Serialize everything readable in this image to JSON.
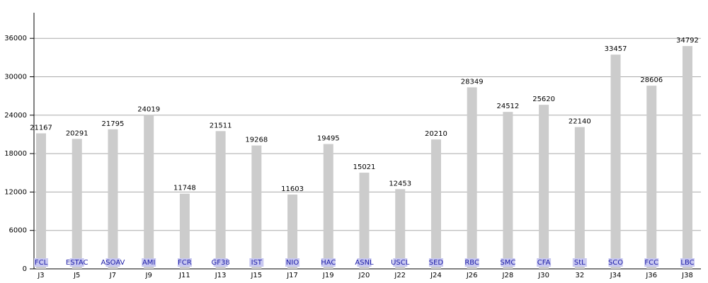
{
  "chart_data": {
    "type": "bar",
    "categories": [
      "J3",
      "J5",
      "J7",
      "J9",
      "J11",
      "J13",
      "J15",
      "J17",
      "J19",
      "J20",
      "J22",
      "J24",
      "J26",
      "J28",
      "J30",
      "32",
      "J34",
      "J36",
      "J38"
    ],
    "values": [
      21167,
      20291,
      21795,
      24019,
      11748,
      21511,
      19268,
      11603,
      19495,
      15021,
      12453,
      20210,
      28349,
      24512,
      25620,
      22140,
      33457,
      28606,
      34792
    ],
    "opponents": [
      "FCL",
      "ESTAC",
      "ASOAV",
      "AMI",
      "FCR",
      "GF38",
      "IST",
      "NIO",
      "HAC",
      "ASNL",
      "USCL",
      "SED",
      "RBC",
      "SMC",
      "CFA",
      "StL",
      "SCO",
      "FCC",
      "LBC"
    ],
    "color": "#cccccc",
    "ylim": [
      0,
      40000
    ],
    "yticks": [
      0,
      6000,
      12000,
      18000,
      24000,
      30000,
      36000
    ],
    "grid": true
  }
}
